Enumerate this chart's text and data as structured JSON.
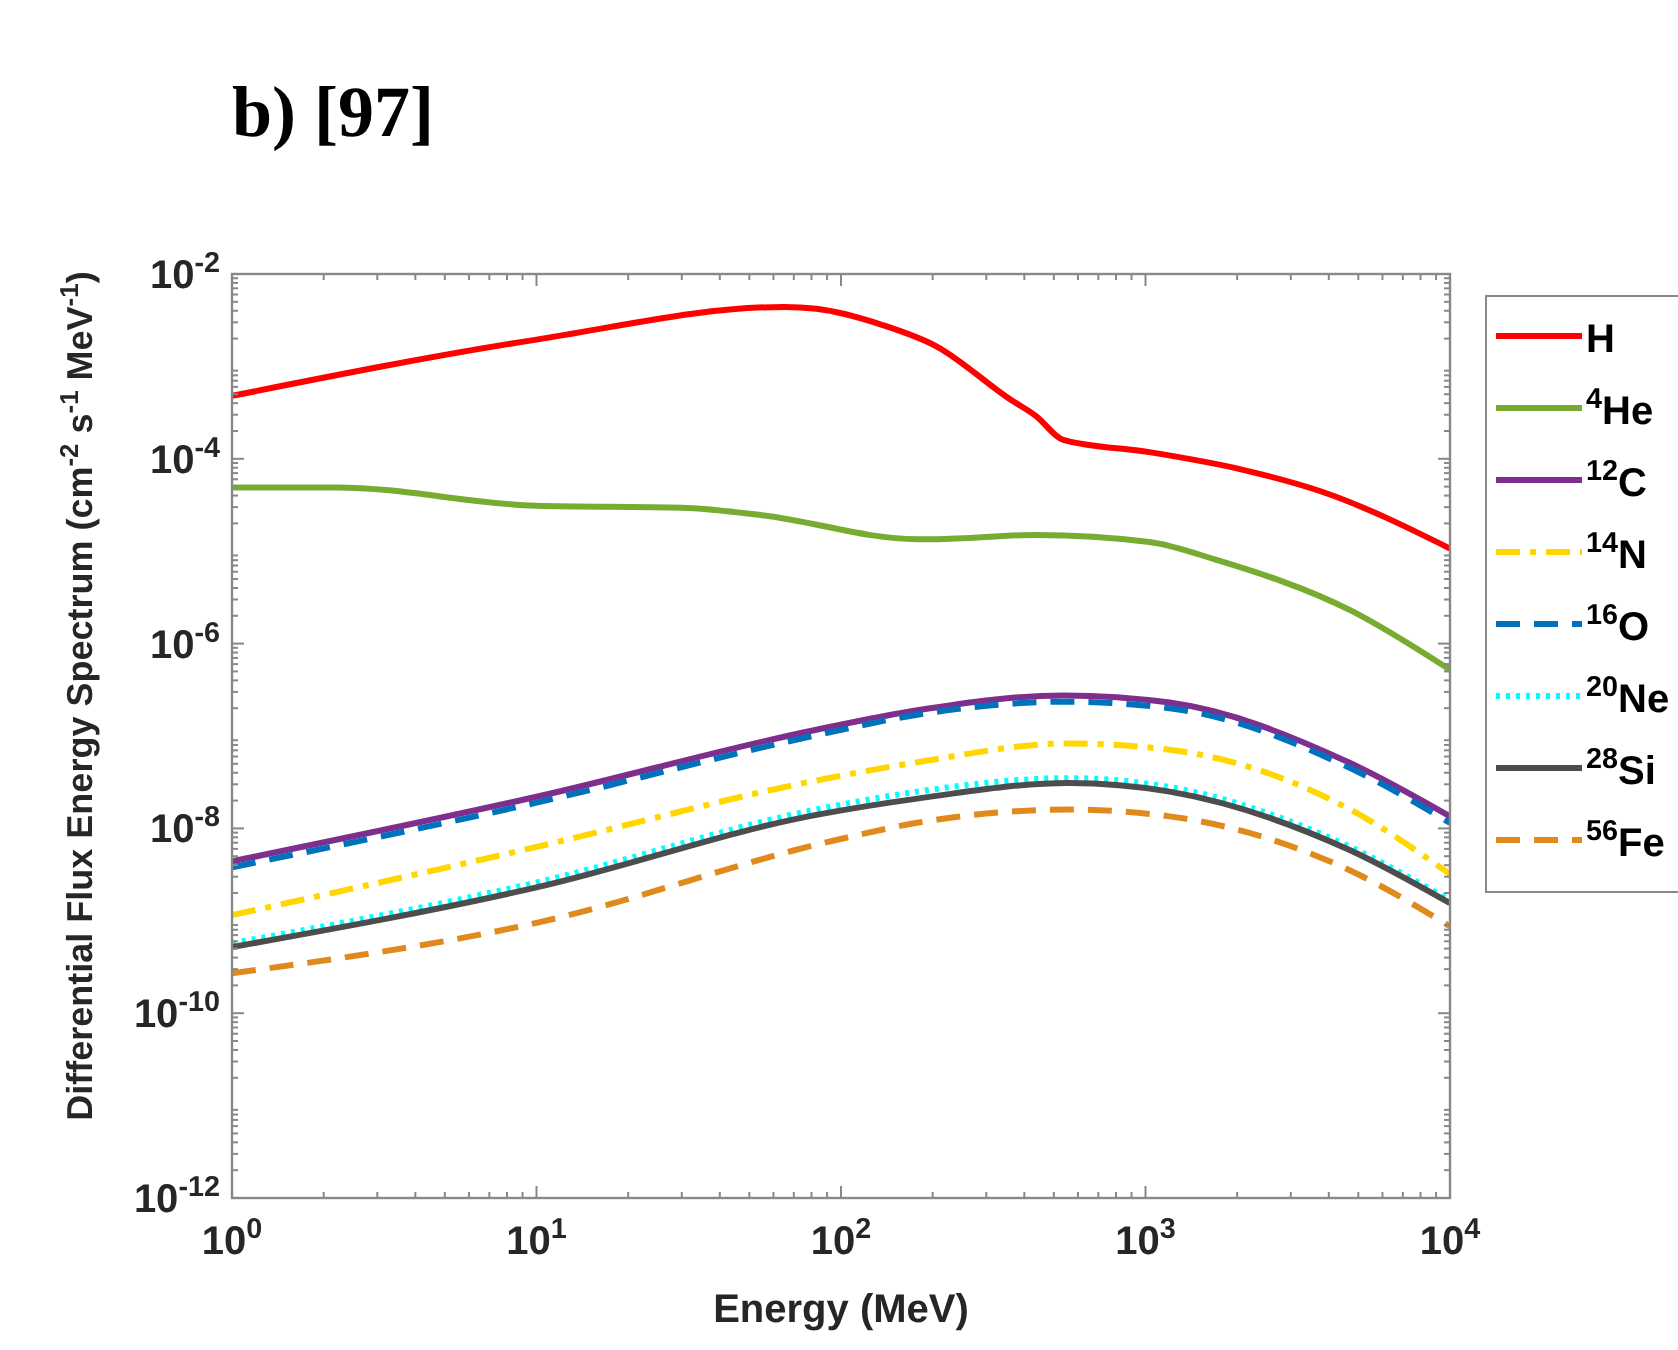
{
  "chart_data": {
    "type": "line",
    "title": "b) [97]",
    "xlabel": "Energy (MeV)",
    "ylabel": "Differential Flux Energy Spectrum (cm$^{-2}$ s$^{-1}$ MeV$^{-1}$)",
    "log": "xy",
    "xlim": [
      1,
      10000
    ],
    "ylim": [
      1e-12,
      0.01
    ],
    "xticks": [
      {
        "value": 1,
        "label": "10$^{0}$"
      },
      {
        "value": 10,
        "label": "10$^{1}$"
      },
      {
        "value": 100,
        "label": "10$^{2}$"
      },
      {
        "value": 1000,
        "label": "10$^{3}$"
      },
      {
        "value": 10000,
        "label": "10$^{4}$"
      }
    ],
    "yticks": [
      {
        "value": 1e-12,
        "label": "10$^{-12}$"
      },
      {
        "value": 1e-10,
        "label": "10$^{-10}$"
      },
      {
        "value": 1e-08,
        "label": "10$^{-8}$"
      },
      {
        "value": 1e-06,
        "label": "10$^{-6}$"
      },
      {
        "value": 0.0001,
        "label": "10$^{-4}$"
      },
      {
        "value": 0.01,
        "label": "10$^{-2}$"
      }
    ],
    "legend": "right",
    "grid": false,
    "series": [
      {
        "name": "H",
        "color": "#ff0000",
        "line_style": "solid",
        "x": [
          1,
          10,
          65,
          83,
          137,
          205,
          359,
          437,
          537,
          1030,
          2090,
          3800,
          10000
        ],
        "values": [
          0.00048,
          0.00195,
          0.0044,
          0.0042,
          0.0028,
          0.00166,
          0.00044,
          0.00029,
          0.00016,
          0.000118,
          7.6e-05,
          4.4e-05,
          1.07e-05
        ]
      },
      {
        "name": "$^{4}$He",
        "color": "#77ac30",
        "line_style": "solid",
        "x": [
          1,
          2.2,
          10,
          30,
          55,
          178,
          204,
          437,
          1030,
          1700,
          4700,
          10000
        ],
        "values": [
          4.9e-05,
          4.9e-05,
          3.1e-05,
          2.95e-05,
          2.45e-05,
          1.35e-05,
          1.35e-05,
          1.5e-05,
          1.26e-05,
          8.1e-06,
          2.3e-06,
          5.2e-07
        ]
      },
      {
        "name": "$^{12}$C",
        "color": "#7e2f8e",
        "line_style": "solid",
        "x": [
          1,
          10,
          83,
          178,
          540,
          1200,
          4700,
          10000
        ],
        "values": [
          4.4e-09,
          2.2e-08,
          1.17e-07,
          1.9e-07,
          2.75e-07,
          2.3e-07,
          5.1e-08,
          1.35e-08
        ]
      },
      {
        "name": "$^{14}$N",
        "color": "#ffd700",
        "line_style": "dashdot",
        "x": [
          1,
          10,
          83,
          178,
          560,
          1200,
          4700,
          10000
        ],
        "values": [
          1.15e-09,
          6.3e-09,
          3.3e-08,
          5.2e-08,
          8.3e-08,
          7.1e-08,
          1.6e-08,
          3.2e-09
        ]
      },
      {
        "name": "$^{16}$O",
        "color": "#0072bd",
        "line_style": "dashed",
        "x": [
          1,
          10,
          83,
          178,
          540,
          1200,
          4700,
          10000
        ],
        "values": [
          3.8e-09,
          1.9e-08,
          1.02e-07,
          1.7e-07,
          2.35e-07,
          2e-07,
          4.5e-08,
          1.15e-08
        ]
      },
      {
        "name": "$^{20}$Ne",
        "color": "#00ffff",
        "line_style": "dotted",
        "x": [
          1,
          10,
          83,
          178,
          560,
          1200,
          4700,
          10000
        ],
        "values": [
          5.7e-10,
          2.6e-09,
          1.6e-08,
          2.5e-08,
          3.5e-08,
          2.8e-08,
          6.3e-09,
          1.66e-09
        ]
      },
      {
        "name": "$^{28}$Si",
        "color": "#4d4d4d",
        "line_style": "solid",
        "x": [
          1,
          10,
          83,
          178,
          560,
          1200,
          4700,
          10000
        ],
        "values": [
          5.2e-10,
          2.3e-09,
          1.4e-08,
          2.1e-08,
          3.1e-08,
          2.5e-08,
          5.8e-09,
          1.55e-09
        ]
      },
      {
        "name": "$^{56}$Fe",
        "color": "#e08a1e",
        "line_style": "dashed",
        "x": [
          1,
          10,
          95,
          178,
          560,
          1200,
          4700,
          10000
        ],
        "values": [
          2.7e-10,
          9.5e-10,
          7.4e-09,
          1.15e-08,
          1.6e-08,
          1.35e-08,
          3.5e-09,
          8.7e-10
        ]
      }
    ]
  }
}
